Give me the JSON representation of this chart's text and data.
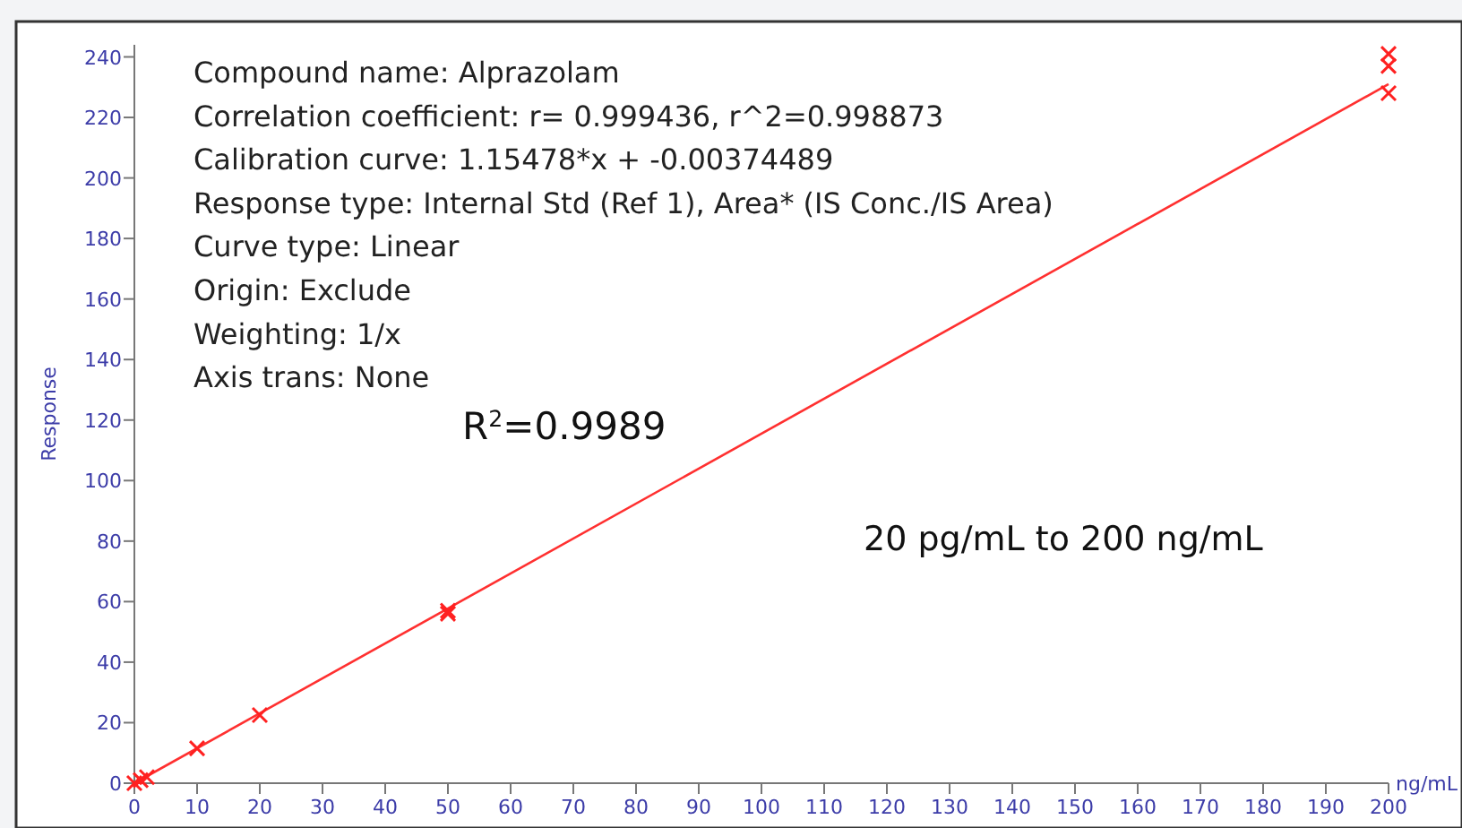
{
  "chart_data": {
    "type": "scatter",
    "xlabel": "ng/mL",
    "ylabel": "Response",
    "xlim": [
      0,
      200
    ],
    "ylim": [
      0,
      244
    ],
    "xticks": [
      0,
      10,
      20,
      30,
      40,
      50,
      60,
      70,
      80,
      90,
      100,
      110,
      120,
      130,
      140,
      150,
      160,
      170,
      180,
      190,
      200
    ],
    "yticks": [
      0,
      20,
      40,
      60,
      80,
      100,
      120,
      140,
      160,
      180,
      200,
      220,
      240
    ],
    "marker": "cross",
    "grid": false,
    "series": [
      {
        "color": "#ff2020",
        "x": [
          0,
          1,
          2,
          10,
          20,
          50,
          50,
          200,
          200,
          200
        ],
        "values": [
          0,
          1,
          2,
          11.5,
          22.5,
          56,
          57,
          241,
          237,
          228
        ]
      },
      {
        "type": "line",
        "color": "#ff3030",
        "x": [
          0,
          200
        ],
        "values": [
          0,
          231
        ],
        "marker": "none",
        "line_style": "solid"
      }
    ],
    "annotations": [
      "Compound name: Alprazolam",
      "Correlation coefficient: r= 0.999436, r^2=0.998873",
      "Calibration curve: 1.15478*x + -0.00374489",
      "Response type: Internal Std (Ref 1), Area* (IS Conc./IS Area)",
      "Curve type: Linear",
      "Origin: Exclude",
      "Weighting: 1/x",
      "Axis trans: None",
      "R$^{2}$=0.9989",
      "20 pg/mL to 200 ng/mL"
    ]
  }
}
